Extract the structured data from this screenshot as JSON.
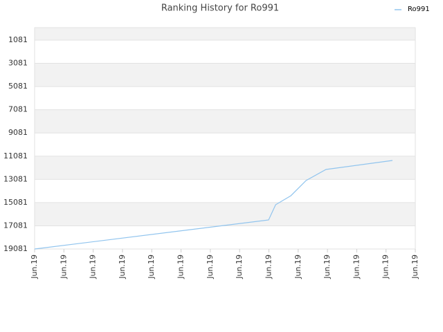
{
  "chart_data": {
    "type": "line",
    "title": "Ranking History for Ro991",
    "x": [
      0,
      7.99,
      8.23,
      8.75,
      9.27,
      9.95,
      12.22
    ],
    "series": [
      {
        "name": "Ro991",
        "color": "#90c4ee",
        "values": [
          19081,
          16578,
          15266,
          14491,
          13180,
          12226,
          11452
        ]
      }
    ],
    "xlim": [
      0,
      13
    ],
    "xticks": [
      {
        "value": 0,
        "label": "Jun.19"
      },
      {
        "value": 1,
        "label": "Jun.19"
      },
      {
        "value": 2,
        "label": "Jun.19"
      },
      {
        "value": 3,
        "label": "Jun.19"
      },
      {
        "value": 4,
        "label": "Jun.19"
      },
      {
        "value": 5,
        "label": "Jun.19"
      },
      {
        "value": 6,
        "label": "Jun.19"
      },
      {
        "value": 7,
        "label": "Jun.19"
      },
      {
        "value": 8,
        "label": "Jun.19"
      },
      {
        "value": 9,
        "label": "Jun.19"
      },
      {
        "value": 10,
        "label": "Jun.19"
      },
      {
        "value": 11,
        "label": "Jun.19"
      },
      {
        "value": 12,
        "label": "Jun.19"
      },
      {
        "value": 13,
        "label": "Jun.19"
      }
    ],
    "ylim": [
      19081,
      10
    ],
    "yticks": [
      1081,
      3081,
      5081,
      7081,
      9081,
      11081,
      13081,
      15081,
      17081,
      19081
    ],
    "grid": true,
    "legend": "top-right"
  }
}
